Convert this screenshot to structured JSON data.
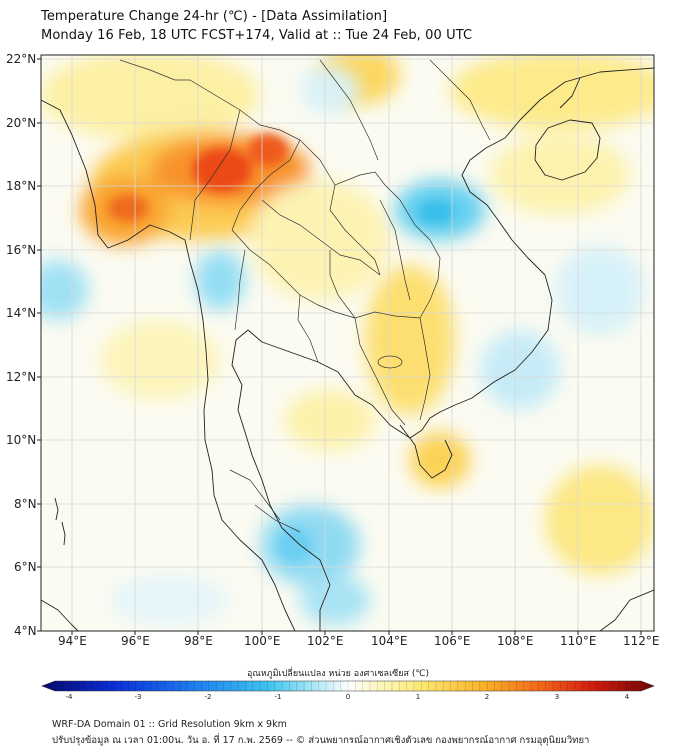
{
  "title_line1": "Temperature Change 24-hr (℃) - [Data Assimilation]",
  "title_line2": "Monday 16 Feb, 18 UTC FCST+174, Valid at :: Tue 24 Feb, 00 UTC",
  "lat_labels": [
    "22°N",
    "20°N",
    "18°N",
    "16°N",
    "14°N",
    "12°N",
    "10°N",
    "8°N",
    "6°N",
    "4°N"
  ],
  "lon_labels": [
    "94°E",
    "96°E",
    "98°E",
    "100°E",
    "102°E",
    "104°E",
    "106°E",
    "108°E",
    "110°E",
    "112°E"
  ],
  "colorbar": {
    "title": "อุณหภูมิเปลี่ยนแปลง หน่วย องศาเซลเซียส (℃)",
    "ticks": [
      "-4",
      "-3",
      "-2",
      "-1",
      "0",
      "1",
      "2",
      "3",
      "4"
    ],
    "min": -4,
    "max": 4
  },
  "footer_line1": "WRF-DA Domain 01 :: Grid Resolution 9km x 9km",
  "footer_line2": "ปรับปรุงข้อมูล ณ เวลา 01:00น. วัน อ. ที่ 17 ก.พ. 2569 -- © ส่วนพยากรณ์อากาศเชิงตัวเลข กองพยากรณ์อากาศ กรมอุตุนิยมวิทยา",
  "colors": {
    "warm_max": "#e8320e",
    "warm": "#f9a51c",
    "mild_warm": "#fde97a",
    "cool": "#3fc2ea",
    "cool_mild": "#a5e3f6",
    "neutral": "#fbfbf0"
  }
}
